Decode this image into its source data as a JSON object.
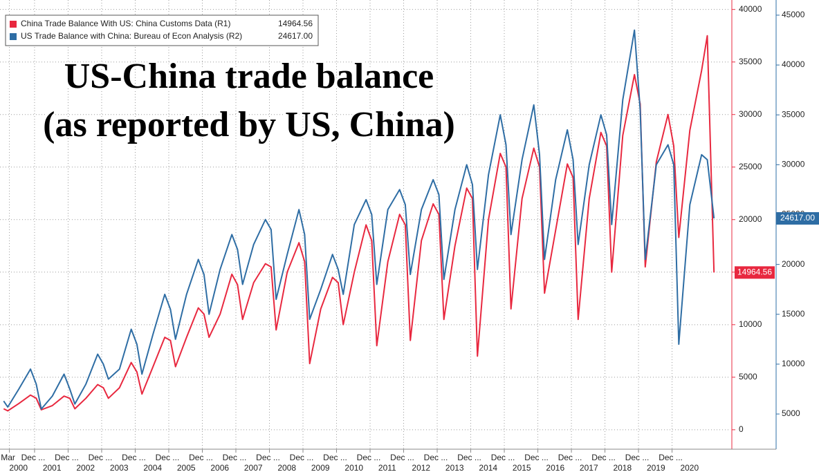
{
  "chart_data": {
    "type": "line",
    "annotation": [
      "US-China trade balance",
      "(as reported by US, China)"
    ],
    "legend": "top-left",
    "grid": true,
    "x": [
      2000,
      2000.12,
      2000.45,
      2000.8,
      2000.97,
      2001.12,
      2001.45,
      2001.8,
      2001.97,
      2002.12,
      2002.45,
      2002.8,
      2002.97,
      2003.12,
      2003.45,
      2003.8,
      2003.97,
      2004.12,
      2004.45,
      2004.8,
      2004.97,
      2005.12,
      2005.45,
      2005.8,
      2005.97,
      2006.12,
      2006.45,
      2006.8,
      2006.97,
      2007.12,
      2007.45,
      2007.8,
      2007.97,
      2008.12,
      2008.45,
      2008.8,
      2008.97,
      2009.12,
      2009.45,
      2009.8,
      2009.97,
      2010.12,
      2010.45,
      2010.8,
      2010.97,
      2011.12,
      2011.45,
      2011.8,
      2011.97,
      2012.12,
      2012.45,
      2012.8,
      2012.97,
      2013.12,
      2013.45,
      2013.8,
      2013.97,
      2014.12,
      2014.45,
      2014.8,
      2014.97,
      2015.12,
      2015.45,
      2015.8,
      2015.97,
      2016.12,
      2016.45,
      2016.8,
      2016.97,
      2017.12,
      2017.45,
      2017.8,
      2017.97,
      2018.12,
      2018.45,
      2018.8,
      2018.97,
      2019.12,
      2019.45,
      2019.8,
      2019.97,
      2020.12,
      2020.45,
      2020.8,
      2020.97,
      2021.17
    ],
    "series": [
      {
        "name": "China Trade Balance With US: China Customs Data (R1)",
        "color": "#e8283f",
        "axis": "y",
        "value_label": "14964.56",
        "values": [
          2000,
          1800,
          2500,
          3300,
          3000,
          1900,
          2300,
          3200,
          3000,
          2000,
          3000,
          4300,
          4000,
          3000,
          4000,
          6400,
          5500,
          3400,
          6000,
          8800,
          8500,
          6000,
          8800,
          11600,
          11000,
          8800,
          11000,
          14800,
          13800,
          10500,
          14000,
          15800,
          15500,
          9500,
          15000,
          17800,
          16000,
          6300,
          11500,
          14500,
          14000,
          10000,
          15000,
          19500,
          18000,
          8000,
          16000,
          20500,
          19500,
          8500,
          18000,
          21500,
          20500,
          10500,
          17500,
          23000,
          22000,
          7000,
          20000,
          26300,
          25000,
          11500,
          22000,
          26800,
          25000,
          13000,
          19000,
          25300,
          24000,
          10500,
          22000,
          28300,
          27000,
          15000,
          28000,
          33800,
          31000,
          15500,
          25500,
          30000,
          27000,
          18300,
          28500,
          34200,
          37500,
          14964.56
        ]
      },
      {
        "name": "US Trade Balance with China: Bureau of Econ Analysis (R2)",
        "color": "#2e6da4",
        "axis": "y2",
        "value_label": "24617.00",
        "values": [
          6300,
          5700,
          7500,
          9500,
          8000,
          5500,
          6800,
          9000,
          7500,
          6000,
          8000,
          11000,
          10000,
          8500,
          9500,
          13500,
          12000,
          9000,
          13000,
          17000,
          15500,
          12500,
          17000,
          20500,
          19000,
          15000,
          19500,
          23000,
          21500,
          18000,
          22000,
          24500,
          23500,
          16500,
          21000,
          25500,
          23000,
          14500,
          17500,
          21000,
          19500,
          17000,
          24000,
          26500,
          25000,
          18000,
          25500,
          27500,
          26000,
          19000,
          25500,
          28500,
          27000,
          18500,
          25500,
          30000,
          28000,
          19500,
          29000,
          35000,
          32000,
          23000,
          30500,
          36000,
          31000,
          20500,
          28500,
          33500,
          30500,
          22000,
          30000,
          35000,
          33000,
          24000,
          36500,
          43500,
          35500,
          20500,
          30000,
          32000,
          30000,
          12000,
          26000,
          31000,
          30500,
          24617
        ]
      }
    ],
    "xlim": [
      1999.89,
      2021.64
    ],
    "xticks": [
      {
        "value": 2000.17,
        "label": "Mar"
      },
      {
        "value": 2000.92,
        "label": "Dec ..."
      },
      {
        "value": 2001.92,
        "label": "Dec ..."
      },
      {
        "value": 2002.92,
        "label": "Dec ..."
      },
      {
        "value": 2003.92,
        "label": "Dec ..."
      },
      {
        "value": 2004.92,
        "label": "Dec ..."
      },
      {
        "value": 2005.92,
        "label": "Dec ..."
      },
      {
        "value": 2006.92,
        "label": "Dec ..."
      },
      {
        "value": 2007.92,
        "label": "Dec ..."
      },
      {
        "value": 2008.92,
        "label": "Dec ..."
      },
      {
        "value": 2009.92,
        "label": "Dec ..."
      },
      {
        "value": 2010.92,
        "label": "Dec ..."
      },
      {
        "value": 2011.92,
        "label": "Dec ..."
      },
      {
        "value": 2012.92,
        "label": "Dec ..."
      },
      {
        "value": 2013.92,
        "label": "Dec ..."
      },
      {
        "value": 2014.92,
        "label": "Dec ..."
      },
      {
        "value": 2015.92,
        "label": "Dec ..."
      },
      {
        "value": 2016.92,
        "label": "Dec ..."
      },
      {
        "value": 2017.92,
        "label": "Dec ..."
      },
      {
        "value": 2018.92,
        "label": "Dec ..."
      },
      {
        "value": 2019.92,
        "label": "Dec ..."
      }
    ],
    "year_labels": [
      2000,
      2001,
      2002,
      2003,
      2004,
      2005,
      2006,
      2007,
      2008,
      2009,
      2010,
      2011,
      2012,
      2013,
      2014,
      2015,
      2016,
      2017,
      2018,
      2019,
      2020
    ],
    "ylim": [
      -1850,
      40900
    ],
    "yticks": [
      0,
      5000,
      10000,
      15000,
      20000,
      25000,
      30000,
      35000,
      40000
    ],
    "y2lim": [
      1470,
      46520
    ],
    "y2ticks": [
      5000,
      10000,
      15000,
      20000,
      25000,
      30000,
      35000,
      40000,
      45000
    ]
  }
}
